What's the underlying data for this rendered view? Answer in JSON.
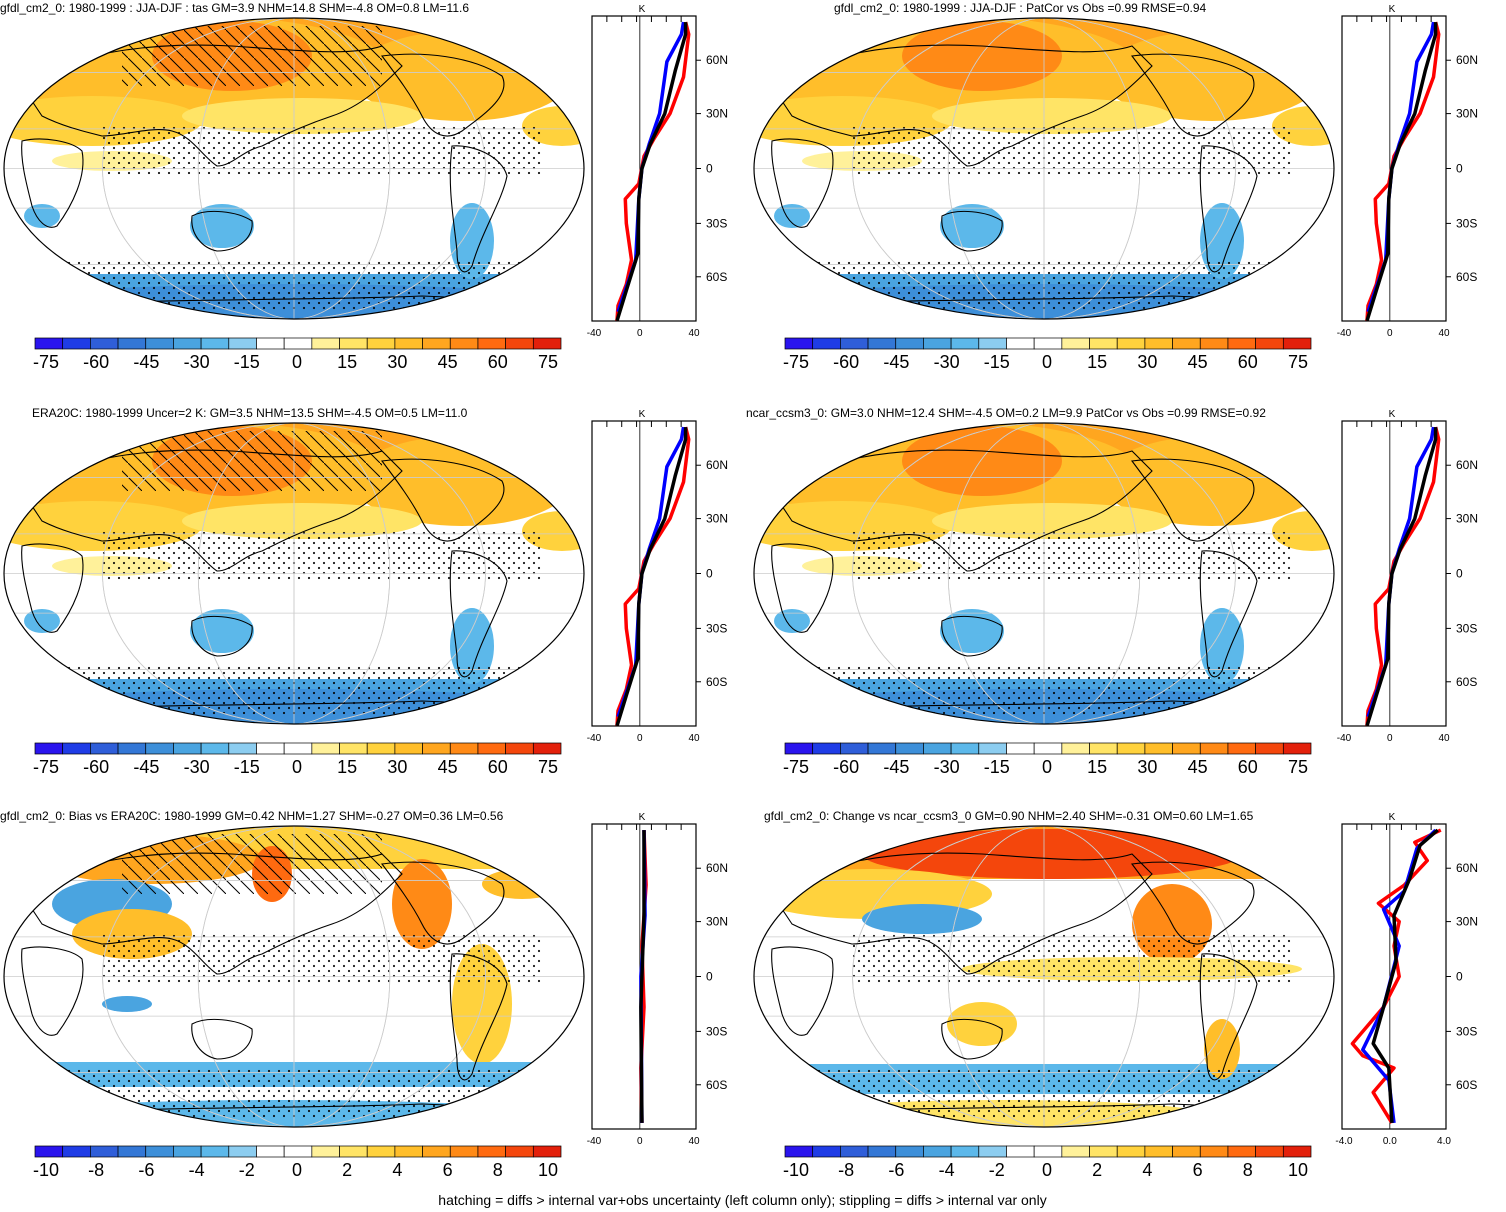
{
  "colors": {
    "scale": [
      "#2a14ee",
      "#1f3ce6",
      "#2f5ed9",
      "#3377d6",
      "#3d8fd9",
      "#4aa4e0",
      "#5cb8ea",
      "#8ccdf0",
      "#ffffff",
      "#ffffff",
      "#fff19a",
      "#ffe466",
      "#ffd23d",
      "#ffbe2a",
      "#ffa61f",
      "#ff8a16",
      "#ff6a10",
      "#f4460c",
      "#e3200b"
    ],
    "profile_obs": "#ff0000",
    "profile_model": "#0000ff",
    "profile_mean": "#000000"
  },
  "icons": [
    "hatching-pattern",
    "stippling-pattern"
  ],
  "panels": [
    {
      "id": "p1",
      "title": "gfdl_cm2_0: 1980-1999 : JJA-DJF : tas GM=3.9 NHM=14.8 SHM=-4.8 OM=0.8 LM=11.6",
      "cb_labels": [
        "-75",
        "-60",
        "-45",
        "-30",
        "-15",
        "0",
        "15",
        "30",
        "45",
        "60",
        "75"
      ],
      "prof_units": "K",
      "prof_ticks": [
        "-40",
        "0",
        "40"
      ],
      "lat_ticks": [
        "60N",
        "30N",
        "0",
        "30S",
        "60S"
      ],
      "type": "tas"
    },
    {
      "id": "p2",
      "title": "gfdl_cm2_0: 1980-1999 : JJA-DJF : PatCor vs Obs =0.99 RMSE=0.94",
      "cb_labels": [
        "-75",
        "-60",
        "-45",
        "-30",
        "-15",
        "0",
        "15",
        "30",
        "45",
        "60",
        "75"
      ],
      "prof_units": "K",
      "prof_ticks": [
        "-40",
        "0",
        "40"
      ],
      "lat_ticks": [
        "60N",
        "30N",
        "0",
        "30S",
        "60S"
      ],
      "type": "tas"
    },
    {
      "id": "p3",
      "title": "ERA20C: 1980-1999 Uncer=2 K: GM=3.5 NHM=13.5 SHM=-4.5 OM=0.5 LM=11.0",
      "cb_labels": [
        "-75",
        "-60",
        "-45",
        "-30",
        "-15",
        "0",
        "15",
        "30",
        "45",
        "60",
        "75"
      ],
      "prof_units": "K",
      "prof_ticks": [
        "-40",
        "0",
        "40"
      ],
      "lat_ticks": [
        "60N",
        "30N",
        "0",
        "30S",
        "60S"
      ],
      "type": "tas"
    },
    {
      "id": "p4",
      "title": "ncar_ccsm3_0: GM=3.0 NHM=12.4 SHM=-4.5 OM=0.2 LM=9.9 PatCor vs Obs =0.99 RMSE=0.92",
      "cb_labels": [
        "-75",
        "-60",
        "-45",
        "-30",
        "-15",
        "0",
        "15",
        "30",
        "45",
        "60",
        "75"
      ],
      "prof_units": "K",
      "prof_ticks": [
        "-40",
        "0",
        "40"
      ],
      "lat_ticks": [
        "60N",
        "30N",
        "0",
        "30S",
        "60S"
      ],
      "type": "tas"
    },
    {
      "id": "p5",
      "title": "gfdl_cm2_0: Bias vs ERA20C: 1980-1999 GM=0.42 NHM=1.27 SHM=-0.27 OM=0.36 LM=0.56",
      "cb_labels": [
        "-10",
        "-8",
        "-6",
        "-4",
        "-2",
        "0",
        "2",
        "4",
        "6",
        "8",
        "10"
      ],
      "prof_units": "K",
      "prof_ticks": [
        "-40",
        "0",
        "40"
      ],
      "lat_ticks": [
        "60N",
        "30N",
        "0",
        "30S",
        "60S"
      ],
      "type": "bias"
    },
    {
      "id": "p6",
      "title": "gfdl_cm2_0: Change vs ncar_ccsm3_0 GM=0.90 NHM=2.40 SHM=-0.31 OM=0.60 LM=1.65",
      "cb_labels": [
        "-10",
        "-8",
        "-6",
        "-4",
        "-2",
        "0",
        "2",
        "4",
        "6",
        "8",
        "10"
      ],
      "prof_units": "K",
      "prof_ticks": [
        "-4.0",
        "0.0",
        "4.0"
      ],
      "lat_ticks": [
        "60N",
        "30N",
        "0",
        "30S",
        "60S"
      ],
      "type": "change"
    }
  ],
  "footer": "hatching = diffs > internal var+obs uncertainty (left column only); stippling = diffs > internal var only"
}
